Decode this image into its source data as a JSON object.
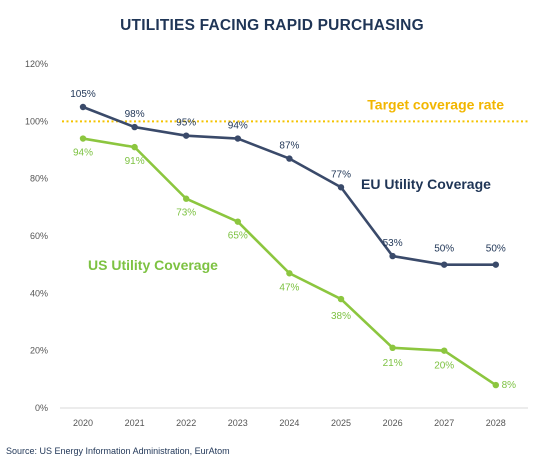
{
  "title": "UTILITIES FACING RAPID PURCHASING",
  "source": "Source: US Energy Information Administration, EurAtom",
  "colors": {
    "eu": "#3a4a6a",
    "us": "#8cc63f",
    "target": "#f5c400",
    "eu_text": "#1f3556",
    "us_text": "#7dc242",
    "target_text": "#f2b600"
  },
  "chart_data": {
    "type": "line",
    "x": [
      "2020",
      "2021",
      "2022",
      "2023",
      "2024",
      "2025",
      "2026",
      "2027",
      "2028"
    ],
    "y_ticks": [
      "0%",
      "20%",
      "40%",
      "60%",
      "80%",
      "100%",
      "120%"
    ],
    "ylim": [
      0,
      120
    ],
    "grid": false,
    "series": [
      {
        "name": "EU Utility Coverage",
        "values": [
          105,
          98,
          95,
          94,
          87,
          77,
          53,
          50,
          50
        ],
        "labels": [
          "105%",
          "98%",
          "95%",
          "94%",
          "87%",
          "77%",
          "53%",
          "50%",
          "50%"
        ]
      },
      {
        "name": "US Utility Coverage",
        "values": [
          94,
          91,
          73,
          65,
          47,
          38,
          21,
          20,
          8
        ],
        "labels": [
          "94%",
          "91%",
          "73%",
          "65%",
          "47%",
          "38%",
          "21%",
          "20%",
          "8%"
        ]
      }
    ],
    "reference_line": {
      "name": "Target coverage rate",
      "value": 100
    }
  }
}
